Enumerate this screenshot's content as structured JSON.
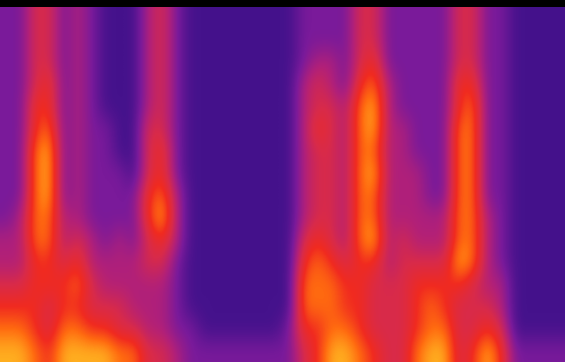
{
  "chart_data": {
    "type": "heatmap",
    "tick_labels": false,
    "value_range": [
      0,
      9
    ],
    "frames": [
      [
        3,
        3,
        3,
        3,
        3,
        3,
        3,
        3,
        3,
        3,
        4,
        4,
        5,
        6,
        7,
        8
      ],
      [
        3,
        3,
        3,
        3,
        3,
        3,
        3,
        3,
        3,
        4,
        4,
        4,
        5,
        6,
        7,
        8
      ],
      [
        5,
        5,
        5,
        5,
        6,
        6,
        7,
        7,
        7,
        7,
        7,
        6,
        6,
        6,
        6,
        7
      ],
      [
        5,
        5,
        5,
        6,
        6,
        7,
        8,
        8,
        8,
        7,
        7,
        6,
        6,
        5,
        5,
        6
      ],
      [
        3,
        3,
        3,
        3,
        3,
        3,
        3,
        3,
        3,
        4,
        4,
        5,
        6,
        6,
        7,
        8
      ],
      [
        4,
        4,
        4,
        4,
        4,
        4,
        4,
        4,
        4,
        4,
        5,
        6,
        7,
        6,
        7,
        8
      ],
      [
        3,
        3,
        3,
        3,
        3,
        3,
        3,
        3,
        3,
        3,
        4,
        4,
        5,
        5,
        6,
        8
      ],
      [
        2,
        2,
        2,
        2,
        2,
        3,
        3,
        3,
        3,
        3,
        3,
        4,
        4,
        5,
        6,
        8
      ],
      [
        2,
        2,
        2,
        2,
        2,
        2,
        2,
        3,
        3,
        3,
        4,
        4,
        4,
        5,
        5,
        7
      ],
      [
        2,
        2,
        2,
        2,
        2,
        2,
        2,
        2,
        3,
        3,
        3,
        4,
        4,
        4,
        5,
        7
      ],
      [
        4,
        4,
        4,
        4,
        4,
        5,
        5,
        5,
        6,
        6,
        5,
        5,
        4,
        4,
        4,
        5
      ],
      [
        5,
        5,
        5,
        5,
        5,
        5,
        6,
        6,
        7,
        8,
        6,
        5,
        4,
        4,
        4,
        5
      ],
      [
        3,
        3,
        3,
        3,
        3,
        3,
        3,
        3,
        4,
        4,
        4,
        3,
        3,
        3,
        3,
        4
      ],
      [
        2,
        2,
        2,
        2,
        2,
        2,
        2,
        2,
        2,
        2,
        2,
        2,
        2,
        2,
        3,
        3
      ],
      [
        2,
        2,
        2,
        2,
        2,
        2,
        2,
        2,
        2,
        2,
        2,
        2,
        2,
        2,
        2,
        3
      ],
      [
        2,
        2,
        2,
        2,
        2,
        2,
        2,
        2,
        2,
        2,
        2,
        2,
        2,
        2,
        2,
        3
      ],
      [
        2,
        2,
        2,
        2,
        2,
        2,
        2,
        2,
        2,
        2,
        2,
        2,
        2,
        2,
        2,
        3
      ],
      [
        2,
        2,
        2,
        2,
        2,
        2,
        2,
        2,
        2,
        2,
        2,
        2,
        2,
        2,
        2,
        3
      ],
      [
        2,
        2,
        2,
        2,
        2,
        2,
        2,
        2,
        2,
        2,
        2,
        2,
        2,
        2,
        2,
        3
      ],
      [
        2,
        2,
        2,
        2,
        2,
        2,
        2,
        2,
        2,
        2,
        2,
        2,
        2,
        2,
        2,
        3
      ],
      [
        2,
        2,
        2,
        2,
        2,
        2,
        2,
        2,
        2,
        2,
        2,
        2,
        2,
        2,
        3,
        3
      ],
      [
        3,
        3,
        3,
        4,
        4,
        4,
        4,
        4,
        4,
        4,
        5,
        6,
        7,
        7,
        6,
        5
      ],
      [
        3,
        3,
        4,
        5,
        5,
        6,
        5,
        5,
        5,
        5,
        6,
        7,
        7,
        7,
        6,
        6
      ],
      [
        3,
        3,
        4,
        4,
        5,
        5,
        5,
        5,
        5,
        5,
        5,
        6,
        7,
        7,
        7,
        8
      ],
      [
        3,
        3,
        3,
        3,
        4,
        4,
        4,
        4,
        4,
        4,
        4,
        5,
        6,
        6,
        7,
        8
      ],
      [
        5,
        5,
        5,
        6,
        7,
        7,
        7,
        7,
        7,
        7,
        7,
        6,
        6,
        6,
        6,
        7
      ],
      [
        5,
        5,
        6,
        7,
        8,
        8,
        7,
        8,
        7,
        7,
        8,
        6,
        5,
        5,
        5,
        6
      ],
      [
        3,
        3,
        3,
        4,
        4,
        4,
        4,
        4,
        4,
        4,
        4,
        4,
        5,
        5,
        5,
        5
      ],
      [
        3,
        3,
        3,
        3,
        3,
        4,
        4,
        4,
        4,
        4,
        5,
        5,
        5,
        5,
        5,
        5
      ],
      [
        3,
        3,
        3,
        3,
        3,
        3,
        3,
        4,
        4,
        4,
        4,
        5,
        6,
        6,
        6,
        7
      ],
      [
        3,
        3,
        3,
        3,
        3,
        3,
        3,
        3,
        3,
        4,
        4,
        5,
        6,
        7,
        7,
        8
      ],
      [
        3,
        3,
        3,
        3,
        3,
        3,
        3,
        3,
        3,
        4,
        4,
        5,
        6,
        6,
        7,
        8
      ],
      [
        5,
        5,
        5,
        6,
        6,
        7,
        7,
        7,
        7,
        7,
        7,
        8,
        6,
        5,
        5,
        5
      ],
      [
        5,
        5,
        5,
        6,
        7,
        7,
        7,
        7,
        7,
        7,
        7,
        7,
        5,
        5,
        5,
        6
      ],
      [
        3,
        3,
        3,
        3,
        3,
        3,
        3,
        3,
        3,
        4,
        4,
        4,
        4,
        5,
        6,
        8
      ],
      [
        3,
        3,
        3,
        3,
        3,
        3,
        3,
        3,
        3,
        3,
        3,
        3,
        4,
        4,
        5,
        6
      ],
      [
        2,
        2,
        2,
        2,
        2,
        2,
        2,
        2,
        2,
        2,
        2,
        2,
        2,
        2,
        2,
        3
      ],
      [
        2,
        2,
        2,
        2,
        2,
        2,
        2,
        2,
        2,
        2,
        2,
        2,
        2,
        2,
        2,
        3
      ],
      [
        2,
        2,
        2,
        2,
        2,
        2,
        2,
        2,
        2,
        2,
        2,
        2,
        2,
        2,
        2,
        3
      ],
      [
        2,
        2,
        2,
        2,
        2,
        2,
        2,
        2,
        2,
        2,
        2,
        2,
        2,
        2,
        2,
        3
      ]
    ]
  }
}
